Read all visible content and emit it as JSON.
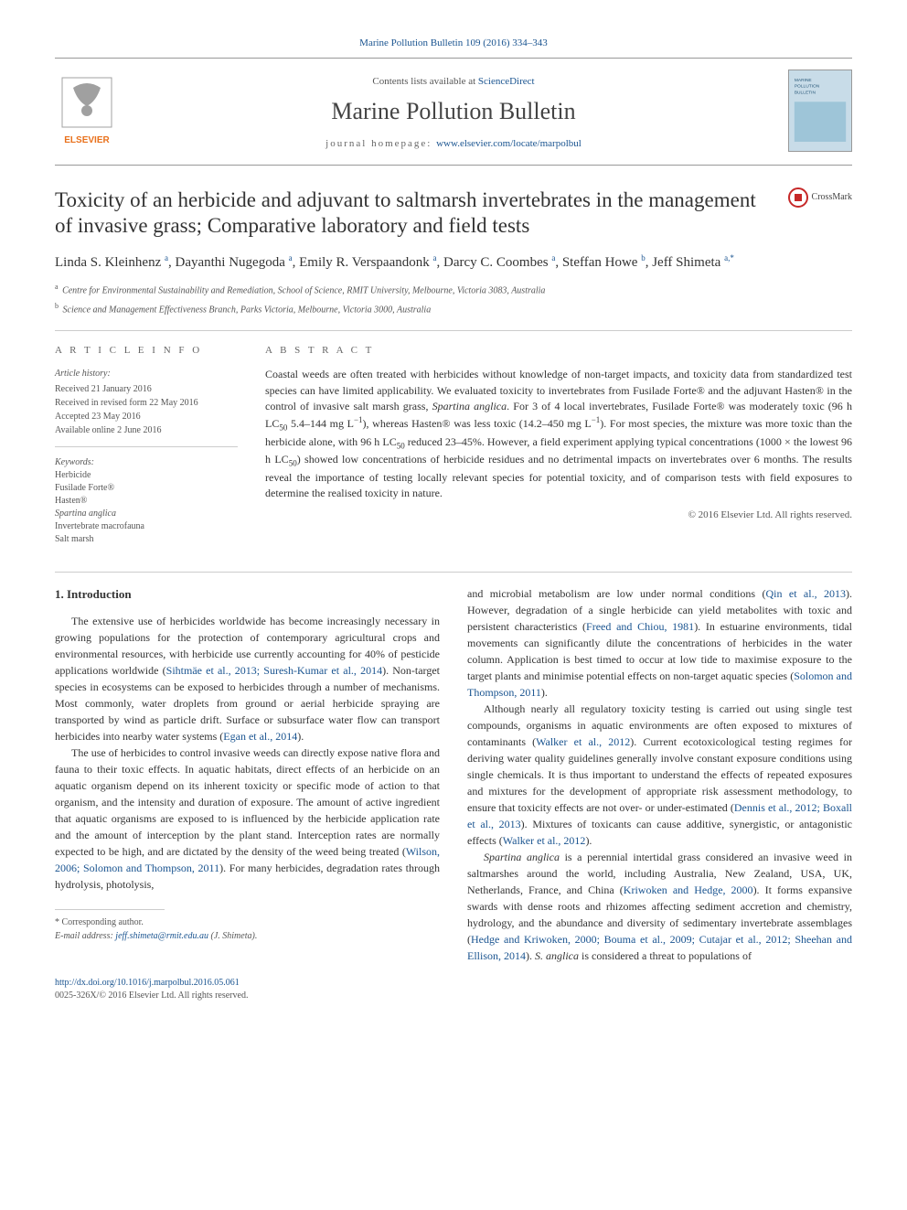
{
  "header": {
    "citation_link": "Marine Pollution Bulletin 109 (2016) 334–343",
    "contents_prefix": "Contents lists available at ",
    "contents_link": "ScienceDirect",
    "journal_name": "Marine Pollution Bulletin",
    "homepage_label": "journal homepage: ",
    "homepage_url": "www.elsevier.com/locate/marpolbul",
    "crossmark_label": "CrossMark"
  },
  "article": {
    "title": "Toxicity of an herbicide and adjuvant to saltmarsh invertebrates in the management of invasive grass; Comparative laboratory and field tests",
    "authors_html": "Linda S. Kleinhenz <sup>a</sup>, Dayanthi Nugegoda <sup>a</sup>, Emily R. Verspaandonk <sup>a</sup>, Darcy C. Coombes <sup>a</sup>, Steffan Howe <sup>b</sup>, Jeff Shimeta <sup>a,*</sup>",
    "affiliations": [
      {
        "sup": "a",
        "text": "Centre for Environmental Sustainability and Remediation, School of Science, RMIT University, Melbourne, Victoria 3083, Australia"
      },
      {
        "sup": "b",
        "text": "Science and Management Effectiveness Branch, Parks Victoria, Melbourne, Victoria 3000, Australia"
      }
    ]
  },
  "info": {
    "section_label_left": "A R T I C L E   I N F O",
    "section_label_right": "A B S T R A C T",
    "history_label": "Article history:",
    "history": [
      "Received 21 January 2016",
      "Received in revised form 22 May 2016",
      "Accepted 23 May 2016",
      "Available online 2 June 2016"
    ],
    "keywords_label": "Keywords:",
    "keywords": [
      "Herbicide",
      "Fusilade Forte®",
      "Hasten®",
      "Spartina anglica",
      "Invertebrate macrofauna",
      "Salt marsh"
    ]
  },
  "abstract": {
    "text_html": "Coastal weeds are often treated with herbicides without knowledge of non-target impacts, and toxicity data from standardized test species can have limited applicability. We evaluated toxicity to invertebrates from Fusilade Forte® and the adjuvant Hasten® in the control of invasive salt marsh grass, <em>Spartina anglica</em>. For 3 of 4 local invertebrates, Fusilade Forte® was moderately toxic (96 h LC<sub>50</sub> 5.4–144 mg L<sup>−1</sup>), whereas Hasten® was less toxic (14.2–450 mg L<sup>−1</sup>). For most species, the mixture was more toxic than the herbicide alone, with 96 h LC<sub>50</sub> reduced 23–45%. However, a field experiment applying typical concentrations (1000 × the lowest 96 h LC<sub>50</sub>) showed low concentrations of herbicide residues and no detrimental impacts on invertebrates over 6 months. The results reveal the importance of testing locally relevant species for potential toxicity, and of comparison tests with field exposures to determine the realised toxicity in nature.",
    "copyright": "© 2016 Elsevier Ltd. All rights reserved."
  },
  "body": {
    "heading": "1. Introduction",
    "col1_paras_html": [
      "The extensive use of herbicides worldwide has become increasingly necessary in growing populations for the protection of contemporary agricultural crops and environmental resources, with herbicide use currently accounting for 40% of pesticide applications worldwide (<a href='#'>Sihtmäe et al., 2013; Suresh-Kumar et al., 2014</a>). Non-target species in ecosystems can be exposed to herbicides through a number of mechanisms. Most commonly, water droplets from ground or aerial herbicide spraying are transported by wind as particle drift. Surface or subsurface water flow can transport herbicides into nearby water systems (<a href='#'>Egan et al., 2014</a>).",
      "The use of herbicides to control invasive weeds can directly expose native flora and fauna to their toxic effects. In aquatic habitats, direct effects of an herbicide on an aquatic organism depend on its inherent toxicity or specific mode of action to that organism, and the intensity and duration of exposure. The amount of active ingredient that aquatic organisms are exposed to is influenced by the herbicide application rate and the amount of interception by the plant stand. Interception rates are normally expected to be high, and are dictated by the density of the weed being treated (<a href='#'>Wilson, 2006; Solomon and Thompson, 2011</a>). For many herbicides, degradation rates through hydrolysis, photolysis,"
    ],
    "col2_paras_html": [
      "and microbial metabolism are low under normal conditions (<a href='#'>Qin et al., 2013</a>). However, degradation of a single herbicide can yield metabolites with toxic and persistent characteristics (<a href='#'>Freed and Chiou, 1981</a>). In estuarine environments, tidal movements can significantly dilute the concentrations of herbicides in the water column. Application is best timed to occur at low tide to maximise exposure to the target plants and minimise potential effects on non-target aquatic species (<a href='#'>Solomon and Thompson, 2011</a>).",
      "Although nearly all regulatory toxicity testing is carried out using single test compounds, organisms in aquatic environments are often exposed to mixtures of contaminants (<a href='#'>Walker et al., 2012</a>). Current ecotoxicological testing regimes for deriving water quality guidelines generally involve constant exposure conditions using single chemicals. It is thus important to understand the effects of repeated exposures and mixtures for the development of appropriate risk assessment methodology, to ensure that toxicity effects are not over- or under-estimated (<a href='#'>Dennis et al., 2012; Boxall et al., 2013</a>). Mixtures of toxicants can cause additive, synergistic, or antagonistic effects (<a href='#'>Walker et al., 2012</a>).",
      "<em>Spartina anglica</em> is a perennial intertidal grass considered an invasive weed in saltmarshes around the world, including Australia, New Zealand, USA, UK, Netherlands, France, and China (<a href='#'>Kriwoken and Hedge, 2000</a>). It forms expansive swards with dense roots and rhizomes affecting sediment accretion and chemistry, hydrology, and the abundance and diversity of sedimentary invertebrate assemblages (<a href='#'>Hedge and Kriwoken, 2000; Bouma et al., 2009; Cutajar et al., 2012; Sheehan and Ellison, 2014</a>). <em>S. anglica</em> is considered a threat to populations of"
    ]
  },
  "footer": {
    "corr_label": "* Corresponding author.",
    "email_label": "E-mail address: ",
    "email": "jeff.shimeta@rmit.edu.au",
    "email_suffix": " (J. Shimeta).",
    "doi": "http://dx.doi.org/10.1016/j.marpolbul.2016.05.061",
    "issn_line": "0025-326X/© 2016 Elsevier Ltd. All rights reserved."
  },
  "colors": {
    "link": "#1a5490",
    "text": "#333333",
    "muted": "#555555",
    "border": "#cccccc",
    "elsevier_orange": "#e9711c",
    "elsevier_grey": "#a0a0a0",
    "cover_bg": "#c8dce8"
  }
}
